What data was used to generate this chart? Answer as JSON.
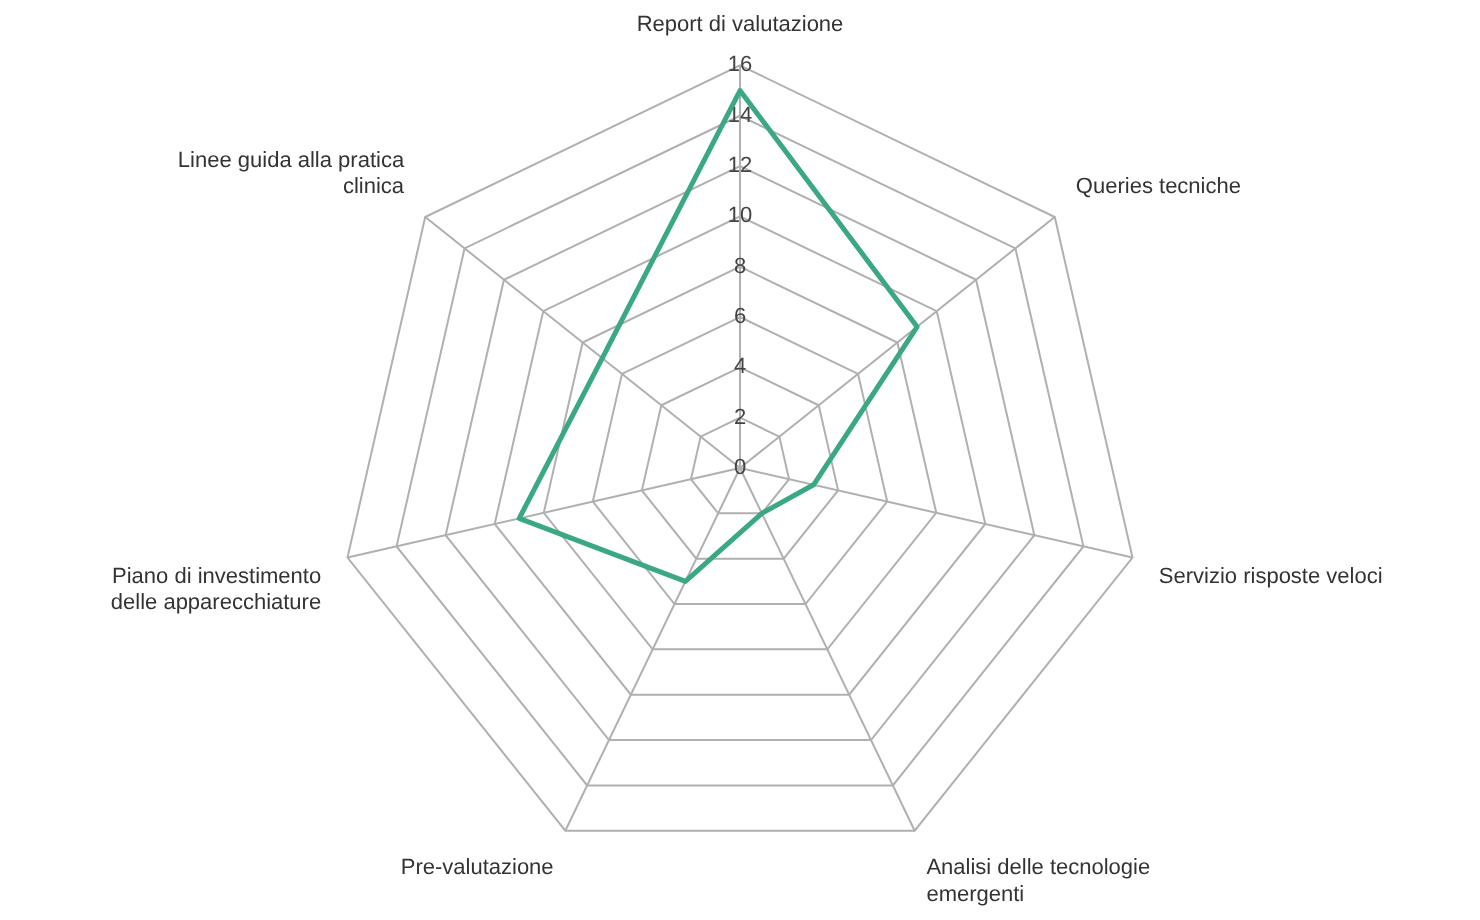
{
  "chart_data": {
    "type": "radar",
    "categories": [
      "Report di valutazione",
      "Queries tecniche",
      "Servizio risposte veloci",
      "Analisi delle tecnologie emergenti",
      "Pre-valutazione",
      "Piano di investimento delle apparecchiature",
      "Linee guida alla pratica clinica"
    ],
    "series": [
      {
        "color": "#3aa882",
        "values": [
          15,
          9,
          3,
          2,
          5,
          9,
          7
        ]
      }
    ],
    "ylim": [
      0,
      16
    ],
    "yticks": [
      0,
      2,
      4,
      6,
      8,
      10,
      12,
      14,
      16
    ],
    "grid": true,
    "legend": false,
    "marker": "none"
  }
}
